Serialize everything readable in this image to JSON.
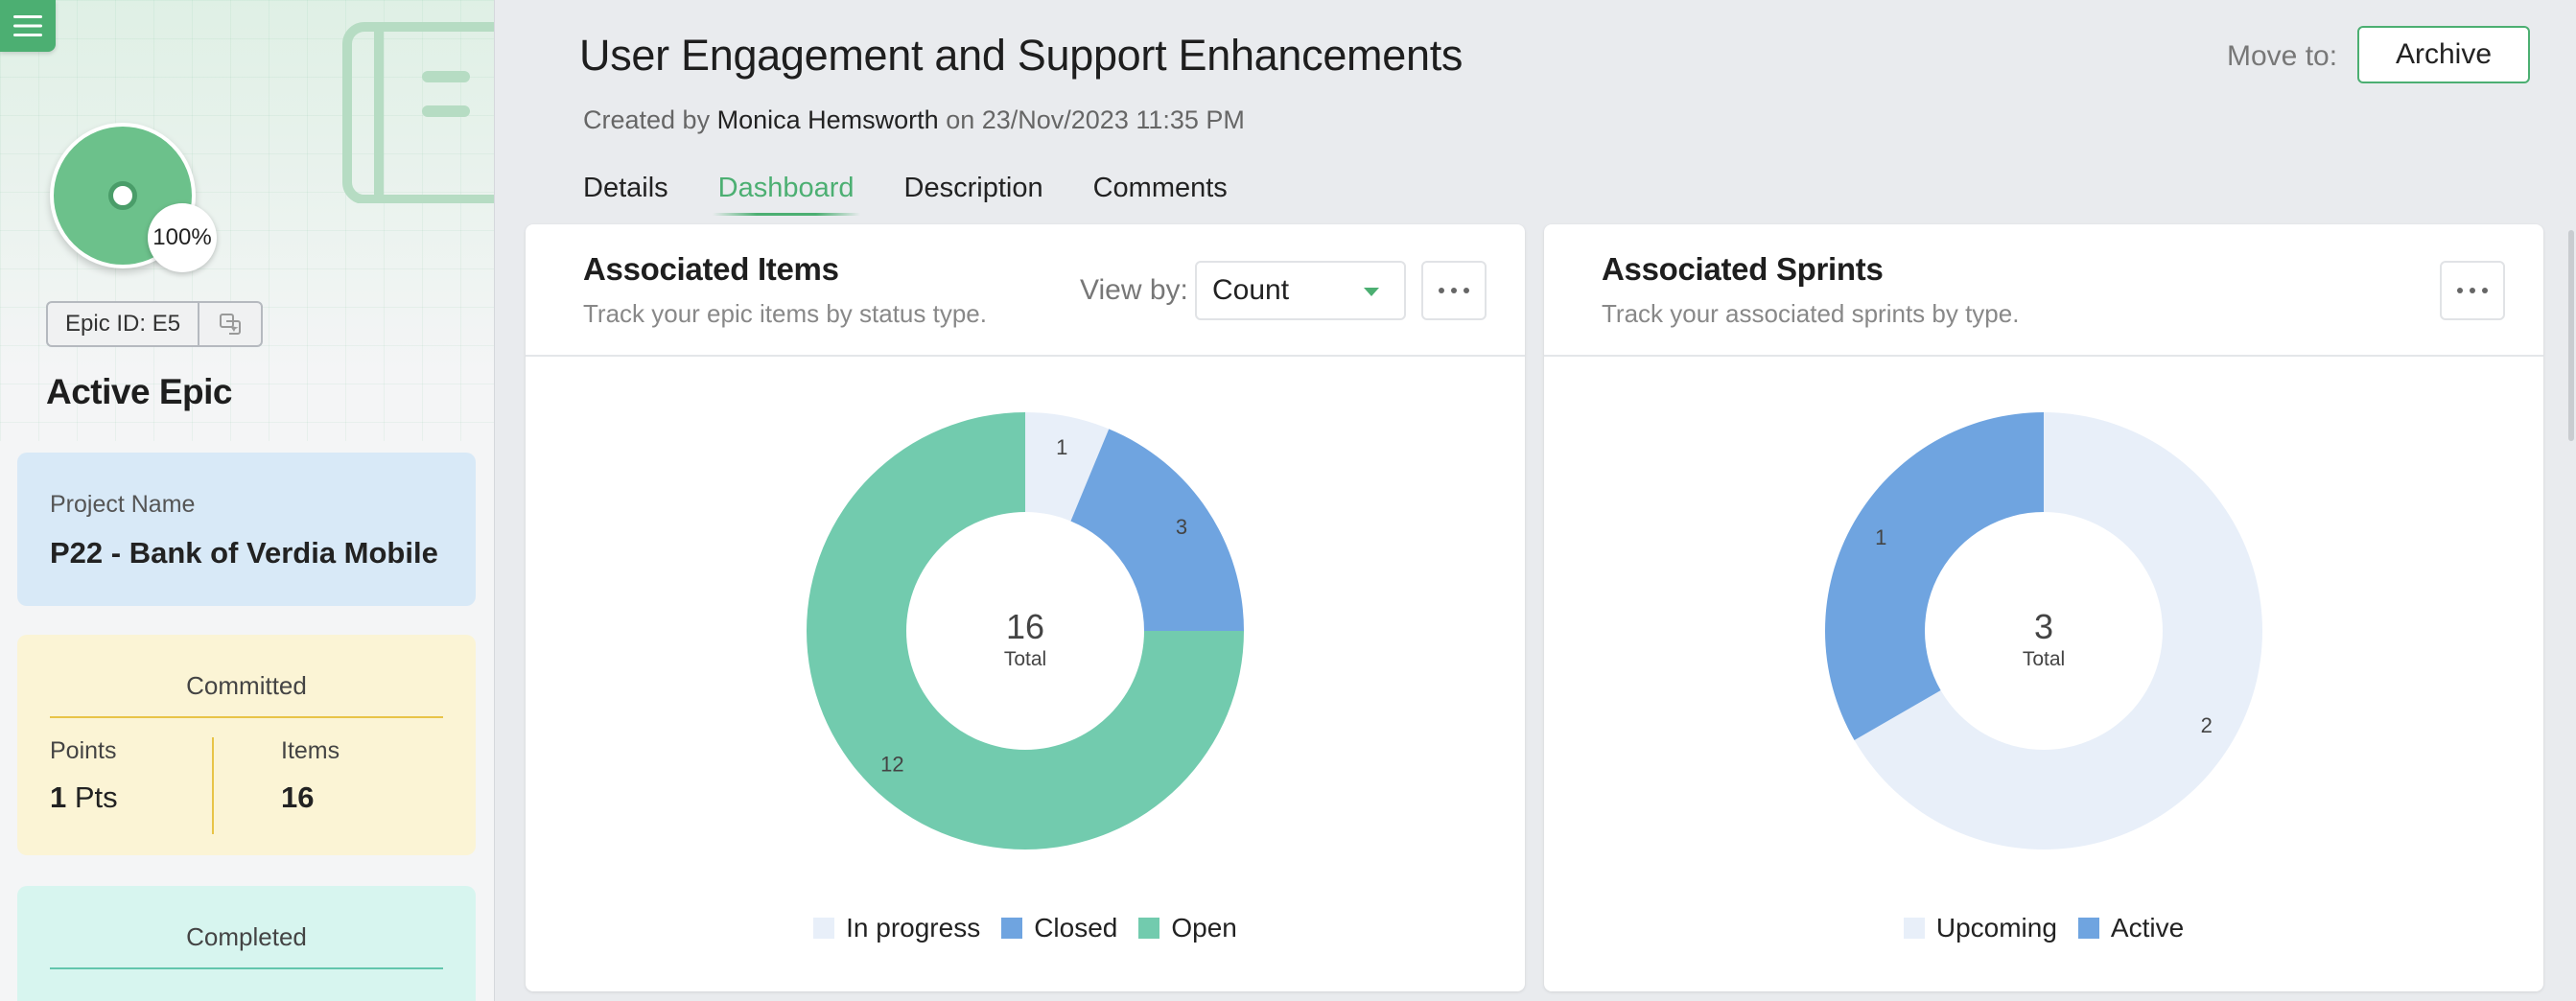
{
  "sidebar": {
    "progress_percent": "100%",
    "epic_id": "Epic ID: E5",
    "status": "Active Epic",
    "project": {
      "label": "Project Name",
      "value": "P22 - Bank of Verdia Mobile"
    },
    "committed": {
      "title": "Committed",
      "points_label": "Points",
      "points_value": "1",
      "points_unit": "Pts",
      "items_label": "Items",
      "items_value": "16"
    },
    "completed": {
      "title": "Completed"
    }
  },
  "header": {
    "title": "User Engagement and Support Enhancements",
    "created_prefix": "Created by",
    "author": "Monica Hemsworth",
    "created_suffix": "on 23/Nov/2023 11:35 PM",
    "move_to_label": "Move to:",
    "archive_label": "Archive"
  },
  "tabs": [
    {
      "label": "Details",
      "active": false
    },
    {
      "label": "Dashboard",
      "active": true
    },
    {
      "label": "Description",
      "active": false
    },
    {
      "label": "Comments",
      "active": false
    }
  ],
  "items_card": {
    "title": "Associated Items",
    "subtitle": "Track your epic items by status type.",
    "view_by_label": "View by:",
    "view_by_value": "Count"
  },
  "sprints_card": {
    "title": "Associated Sprints",
    "subtitle": "Track your associated sprints by type."
  },
  "colors": {
    "accent": "#4caf72",
    "in_progress": "#e8eff9",
    "closed": "#6fa4e0",
    "open": "#72cbae",
    "upcoming": "#e8eff9",
    "active": "#6fa4e0"
  },
  "chart_data": [
    {
      "type": "pie",
      "center_value": "16",
      "center_label": "Total",
      "slices": [
        {
          "name": "In progress",
          "value": 1,
          "color": "#e8eff9"
        },
        {
          "name": "Closed",
          "value": 3,
          "color": "#6fa4e0"
        },
        {
          "name": "Open",
          "value": 12,
          "color": "#72cbae"
        }
      ]
    },
    {
      "type": "pie",
      "center_value": "3",
      "center_label": "Total",
      "slices": [
        {
          "name": "Upcoming",
          "value": 2,
          "color": "#e8eff9"
        },
        {
          "name": "Active",
          "value": 1,
          "color": "#6fa4e0"
        }
      ]
    }
  ]
}
